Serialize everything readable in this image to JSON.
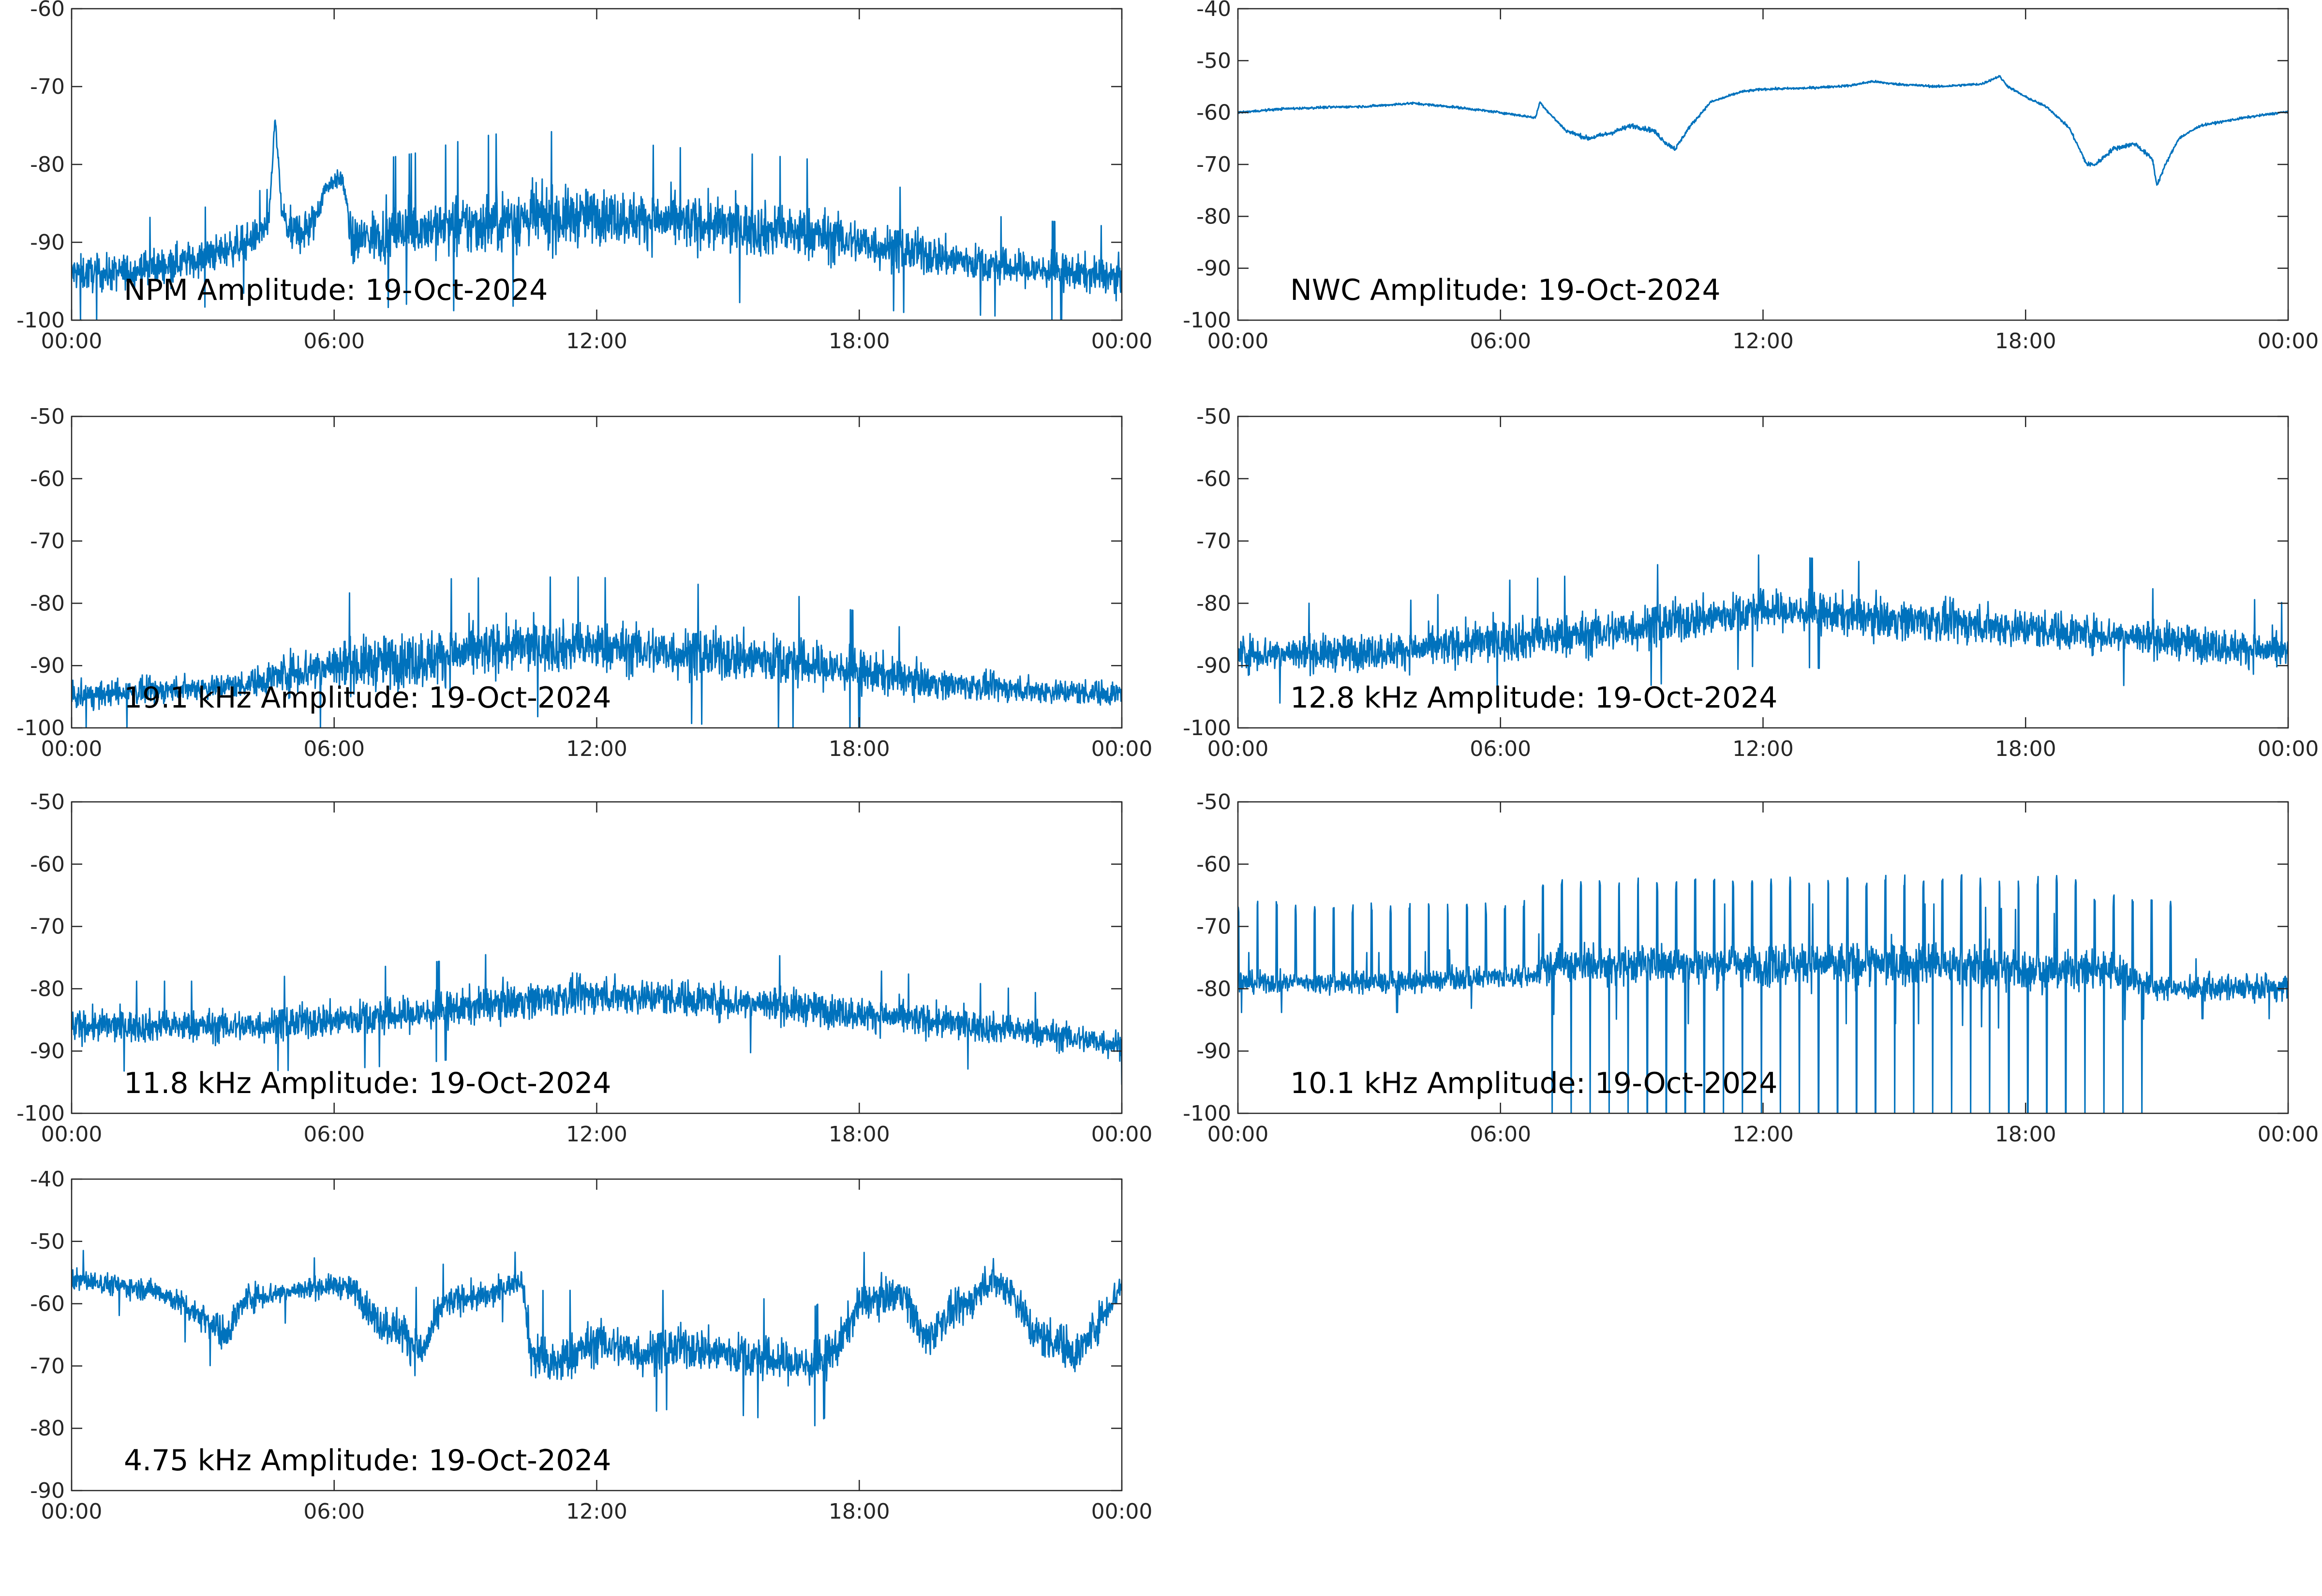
{
  "figure": {
    "line_color": "#0072BD",
    "date": "19-Oct-2024"
  },
  "chart_data": [
    {
      "type": "line",
      "title": "NPM Amplitude: 19-Oct-2024",
      "xlabel": "",
      "ylabel": "",
      "x_ticks": [
        "00:00",
        "06:00",
        "12:00",
        "18:00",
        "00:00"
      ],
      "xlim_hours": [
        0,
        24
      ],
      "ylim": [
        -100,
        -60
      ],
      "y_ticks": [
        -100,
        -90,
        -80,
        -70,
        -60
      ],
      "grid": false,
      "series": [
        {
          "x_hours": [
            0,
            1,
            2,
            3,
            4,
            4.5,
            4.65,
            4.8,
            5,
            5.5,
            5.8,
            6,
            6.2,
            6.4,
            7,
            8,
            9,
            10,
            11,
            12,
            13,
            14,
            15,
            16,
            17,
            18,
            19,
            20,
            21,
            22,
            23,
            24
          ],
          "mean": [
            -94,
            -94,
            -93,
            -92,
            -90,
            -88,
            -74,
            -86,
            -89,
            -88,
            -83,
            -82,
            -82,
            -90,
            -89,
            -88,
            -88,
            -87,
            -87,
            -86.5,
            -87,
            -87.5,
            -88,
            -88.5,
            -89,
            -90,
            -91,
            -92,
            -93,
            -93.5,
            -94,
            -94.5
          ],
          "spread": [
            4,
            4,
            4,
            4,
            4,
            3,
            1,
            3,
            5,
            5,
            2,
            2,
            2,
            5,
            6,
            6,
            7,
            7,
            7,
            6,
            6,
            6,
            6,
            6,
            6,
            5,
            5,
            4.5,
            4,
            4,
            4,
            4
          ]
        }
      ]
    },
    {
      "type": "line",
      "title": "NWC Amplitude: 19-Oct-2024",
      "xlabel": "",
      "ylabel": "",
      "x_ticks": [
        "00:00",
        "06:00",
        "12:00",
        "18:00",
        "00:00"
      ],
      "xlim_hours": [
        0,
        24
      ],
      "ylim": [
        -100,
        -40
      ],
      "y_ticks": [
        -100,
        -90,
        -80,
        -70,
        -60,
        -50,
        -40
      ],
      "grid": false,
      "series": [
        {
          "x_hours": [
            0,
            1,
            2,
            3,
            4,
            5,
            6,
            6.8,
            6.9,
            7.1,
            7.5,
            8,
            8.5,
            9,
            9.5,
            9.8,
            10,
            10.3,
            10.8,
            11.5,
            12,
            13,
            14,
            14.5,
            15,
            16,
            17,
            17.4,
            17.6,
            18,
            18.5,
            19,
            19.4,
            19.6,
            20,
            20.5,
            20.9,
            21,
            21.2,
            21.5,
            22,
            23,
            24
          ],
          "mean": [
            -60,
            -59.3,
            -59,
            -58.8,
            -58.2,
            -59,
            -60,
            -61,
            -58,
            -60,
            -63.5,
            -65,
            -64,
            -62.5,
            -63.5,
            -66,
            -67,
            -63,
            -58,
            -56,
            -55.5,
            -55.3,
            -54.8,
            -54,
            -54.5,
            -55,
            -54.5,
            -53,
            -55,
            -57,
            -59,
            -63,
            -70,
            -70,
            -67,
            -66,
            -69,
            -74,
            -70,
            -65,
            -62.5,
            -61,
            -59.8
          ],
          "spread": [
            0.4,
            0.4,
            0.4,
            0.4,
            0.4,
            0.4,
            0.4,
            0.4,
            0.4,
            0.4,
            0.6,
            0.8,
            0.8,
            0.8,
            0.8,
            0.8,
            0.8,
            0.6,
            0.4,
            0.4,
            0.4,
            0.4,
            0.4,
            0.4,
            0.4,
            0.4,
            0.4,
            0.4,
            0.4,
            0.4,
            0.4,
            0.5,
            0.8,
            0.8,
            0.8,
            0.8,
            0.8,
            0.8,
            0.6,
            0.5,
            0.4,
            0.4,
            0.4
          ]
        }
      ]
    },
    {
      "type": "line",
      "title": "19.1 kHz Amplitude: 19-Oct-2024",
      "xlabel": "",
      "ylabel": "",
      "x_ticks": [
        "00:00",
        "06:00",
        "12:00",
        "18:00",
        "00:00"
      ],
      "xlim_hours": [
        0,
        24
      ],
      "ylim": [
        -100,
        -50
      ],
      "y_ticks": [
        -100,
        -90,
        -80,
        -70,
        -60,
        -50
      ],
      "grid": false,
      "series": [
        {
          "x_hours": [
            0,
            2,
            4,
            5,
            6,
            8,
            10,
            12,
            14,
            16,
            18,
            19,
            20,
            22,
            24
          ],
          "mean": [
            -95,
            -94,
            -93,
            -91,
            -90,
            -89,
            -87,
            -87,
            -88,
            -89,
            -91,
            -92,
            -93,
            -94,
            -94.5
          ],
          "spread": [
            3.5,
            3.5,
            3.5,
            6,
            7,
            8,
            7,
            7,
            7,
            7,
            6,
            5,
            4,
            3.5,
            3.5
          ]
        }
      ]
    },
    {
      "type": "line",
      "title": "12.8 kHz Amplitude: 19-Oct-2024",
      "xlabel": "",
      "ylabel": "",
      "x_ticks": [
        "00:00",
        "06:00",
        "12:00",
        "18:00",
        "00:00"
      ],
      "xlim_hours": [
        0,
        24
      ],
      "ylim": [
        -100,
        -50
      ],
      "y_ticks": [
        -100,
        -90,
        -80,
        -70,
        -60,
        -50
      ],
      "grid": false,
      "series": [
        {
          "x_hours": [
            0,
            2,
            4,
            6,
            8,
            10,
            12,
            14,
            16,
            18,
            20,
            22,
            24
          ],
          "mean": [
            -88,
            -88,
            -87.5,
            -86,
            -85,
            -83,
            -81,
            -82,
            -83,
            -84,
            -85,
            -86.5,
            -88
          ],
          "spread": [
            5,
            5,
            5,
            6,
            6,
            6,
            5.5,
            5.5,
            5.5,
            5.5,
            5,
            5,
            5
          ]
        }
      ]
    },
    {
      "type": "line",
      "title": "11.8 kHz Amplitude: 19-Oct-2024",
      "xlabel": "",
      "ylabel": "",
      "x_ticks": [
        "00:00",
        "06:00",
        "12:00",
        "18:00",
        "00:00"
      ],
      "xlim_hours": [
        0,
        24
      ],
      "ylim": [
        -100,
        -50
      ],
      "y_ticks": [
        -100,
        -90,
        -80,
        -70,
        -60,
        -50
      ],
      "grid": false,
      "series": [
        {
          "x_hours": [
            0,
            2,
            4,
            6,
            8,
            10,
            12,
            14,
            16,
            18,
            20,
            22,
            24
          ],
          "mean": [
            -86,
            -86,
            -86,
            -85,
            -84,
            -82,
            -81,
            -81.5,
            -82.5,
            -84,
            -85.5,
            -87,
            -89
          ],
          "spread": [
            4.5,
            4.5,
            4.5,
            5,
            5,
            5,
            5,
            5,
            5,
            4.5,
            4.5,
            4,
            4
          ]
        }
      ]
    },
    {
      "type": "line",
      "title": "10.1 kHz Amplitude: 19-Oct-2024",
      "xlabel": "",
      "ylabel": "",
      "x_ticks": [
        "00:00",
        "06:00",
        "12:00",
        "18:00",
        "00:00"
      ],
      "xlim_hours": [
        0,
        24
      ],
      "ylim": [
        -100,
        -50
      ],
      "y_ticks": [
        -100,
        -90,
        -80,
        -70,
        -60,
        -50
      ],
      "grid": false,
      "series": [
        {
          "x_hours": [
            0,
            2,
            4,
            6,
            6.8,
            7,
            10,
            12,
            14,
            16,
            18,
            20,
            21,
            22,
            24
          ],
          "mean": [
            -79,
            -79,
            -79,
            -78,
            -78,
            -76,
            -76,
            -76,
            -76,
            -76,
            -77,
            -77,
            -80,
            -80,
            -80
          ],
          "spread": [
            3,
            3,
            3,
            3,
            3,
            5,
            6,
            6,
            6,
            6,
            6,
            5,
            3,
            3,
            3
          ],
          "periodic_spikes": {
            "upper_phase": [
              [
                0,
                6.8,
                -67
              ],
              [
                6.8,
                19.5,
                -63
              ],
              [
                19.5,
                21.5,
                -66
              ],
              [
                21.5,
                24,
                -78
              ]
            ],
            "lower_phase": [
              [
                6.8,
                20.7,
                -100
              ]
            ]
          }
        }
      ]
    },
    {
      "type": "line",
      "title": "4.75 kHz Amplitude: 19-Oct-2024",
      "xlabel": "",
      "ylabel": "",
      "x_ticks": [
        "00:00",
        "06:00",
        "12:00",
        "18:00",
        "00:00"
      ],
      "xlim_hours": [
        0,
        24
      ],
      "ylim": [
        -90,
        -40
      ],
      "y_ticks": [
        -90,
        -80,
        -70,
        -60,
        -50,
        -40
      ],
      "grid": false,
      "series": [
        {
          "x_hours": [
            0,
            1,
            2,
            3,
            3.5,
            4,
            5,
            6,
            6.5,
            7,
            7.5,
            8,
            8.5,
            9,
            9.5,
            10,
            10.3,
            10.5,
            11,
            12,
            13,
            14,
            15,
            16,
            17,
            17.5,
            18,
            19,
            19.5,
            20,
            20.5,
            21,
            21.5,
            22,
            22.5,
            23,
            24
          ],
          "mean": [
            -56,
            -57,
            -58,
            -62,
            -65,
            -59,
            -58,
            -57,
            -58,
            -63,
            -64,
            -68,
            -60,
            -59,
            -59,
            -57,
            -56,
            -68,
            -70,
            -66,
            -68,
            -67,
            -68,
            -69,
            -70,
            -67,
            -60,
            -58,
            -66,
            -62,
            -60,
            -56,
            -58,
            -65,
            -66,
            -68,
            -57
          ],
          "spread": [
            3,
            3,
            3,
            4,
            5,
            4,
            3,
            3,
            4,
            5,
            6,
            6,
            4,
            4,
            4,
            3,
            3,
            7,
            7,
            6,
            6,
            6,
            6,
            6,
            6,
            6,
            5,
            5,
            6,
            5,
            5,
            5,
            5,
            6,
            6,
            6,
            4
          ]
        }
      ]
    }
  ]
}
